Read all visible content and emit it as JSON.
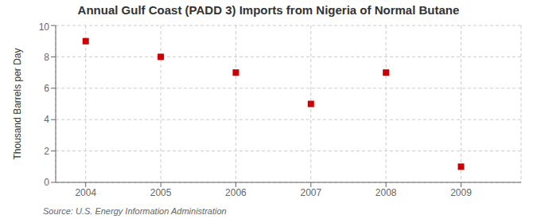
{
  "chart_data": {
    "type": "scatter",
    "title": "Annual Gulf Coast (PADD 3) Imports from Nigeria of Normal Butane",
    "ylabel": "Thousand Barrels per Day",
    "annotation": "Source: U.S. Energy Information Administration",
    "x": [
      2004,
      2005,
      2006,
      2007,
      2008,
      2009
    ],
    "values": [
      9,
      8,
      7,
      5,
      7,
      1
    ],
    "xlim": [
      2003.6,
      2009.8
    ],
    "xticks": [
      2004,
      2005,
      2006,
      2007,
      2008,
      2009
    ],
    "ylim": [
      0,
      10
    ],
    "yticks": [
      0,
      2,
      4,
      6,
      8,
      10
    ],
    "color": "#cc0000",
    "marker": "square",
    "grid": true
  }
}
